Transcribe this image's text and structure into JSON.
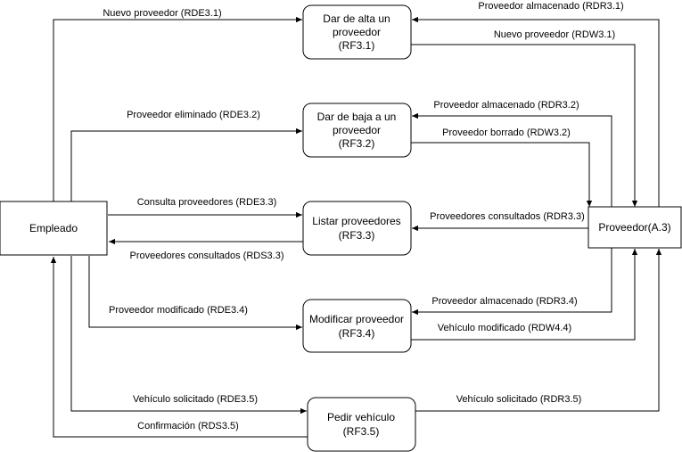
{
  "nodes": {
    "empleado": {
      "lines": [
        "Empleado"
      ]
    },
    "proveedor": {
      "lines": [
        "Proveedor(A.3)"
      ]
    },
    "rf31": {
      "lines": [
        "Dar de alta un",
        "proveedor",
        "(RF3.1)"
      ]
    },
    "rf32": {
      "lines": [
        "Dar de baja a un",
        "proveedor",
        "(RF3.2)"
      ]
    },
    "rf33": {
      "lines": [
        "Listar proveedores",
        "(RF3.3)"
      ]
    },
    "rf34": {
      "lines": [
        "Modificar proveedor",
        "(RF3.4)"
      ]
    },
    "rf35": {
      "lines": [
        "Pedir vehículo",
        "(RF3.5)"
      ]
    }
  },
  "edges": [
    {
      "id": "rde31",
      "label": "Nuevo proveedor (RDE3.1)"
    },
    {
      "id": "rdr31",
      "label": "Proveedor almacenado (RDR3.1)"
    },
    {
      "id": "rdw31",
      "label": "Nuevo proveedor (RDW3.1)"
    },
    {
      "id": "rde32",
      "label": "Proveedor eliminado (RDE3.2)"
    },
    {
      "id": "rdr32",
      "label": "Proveedor almacenado (RDR3.2)"
    },
    {
      "id": "rdw32",
      "label": "Proveedor borrado (RDW3.2)"
    },
    {
      "id": "rde33",
      "label": "Consulta proveedores (RDE3.3)"
    },
    {
      "id": "rdr33",
      "label": "Proveedores consultados (RDR3.3)"
    },
    {
      "id": "rds33",
      "label": "Proveedores consultados (RDS3.3)"
    },
    {
      "id": "rde34",
      "label": "Proveedor modificado (RDE3.4)"
    },
    {
      "id": "rdr34",
      "label": "Proveedor almacenado (RDR3.4)"
    },
    {
      "id": "rdw44",
      "label": "Vehículo modificado (RDW4.4)"
    },
    {
      "id": "rde35",
      "label": "Vehículo solicitado (RDE3.5)"
    },
    {
      "id": "rds35",
      "label": "Confirmación (RDS3.5)"
    },
    {
      "id": "rdr35",
      "label": "Vehículo solicitado (RDR3.5)"
    }
  ]
}
